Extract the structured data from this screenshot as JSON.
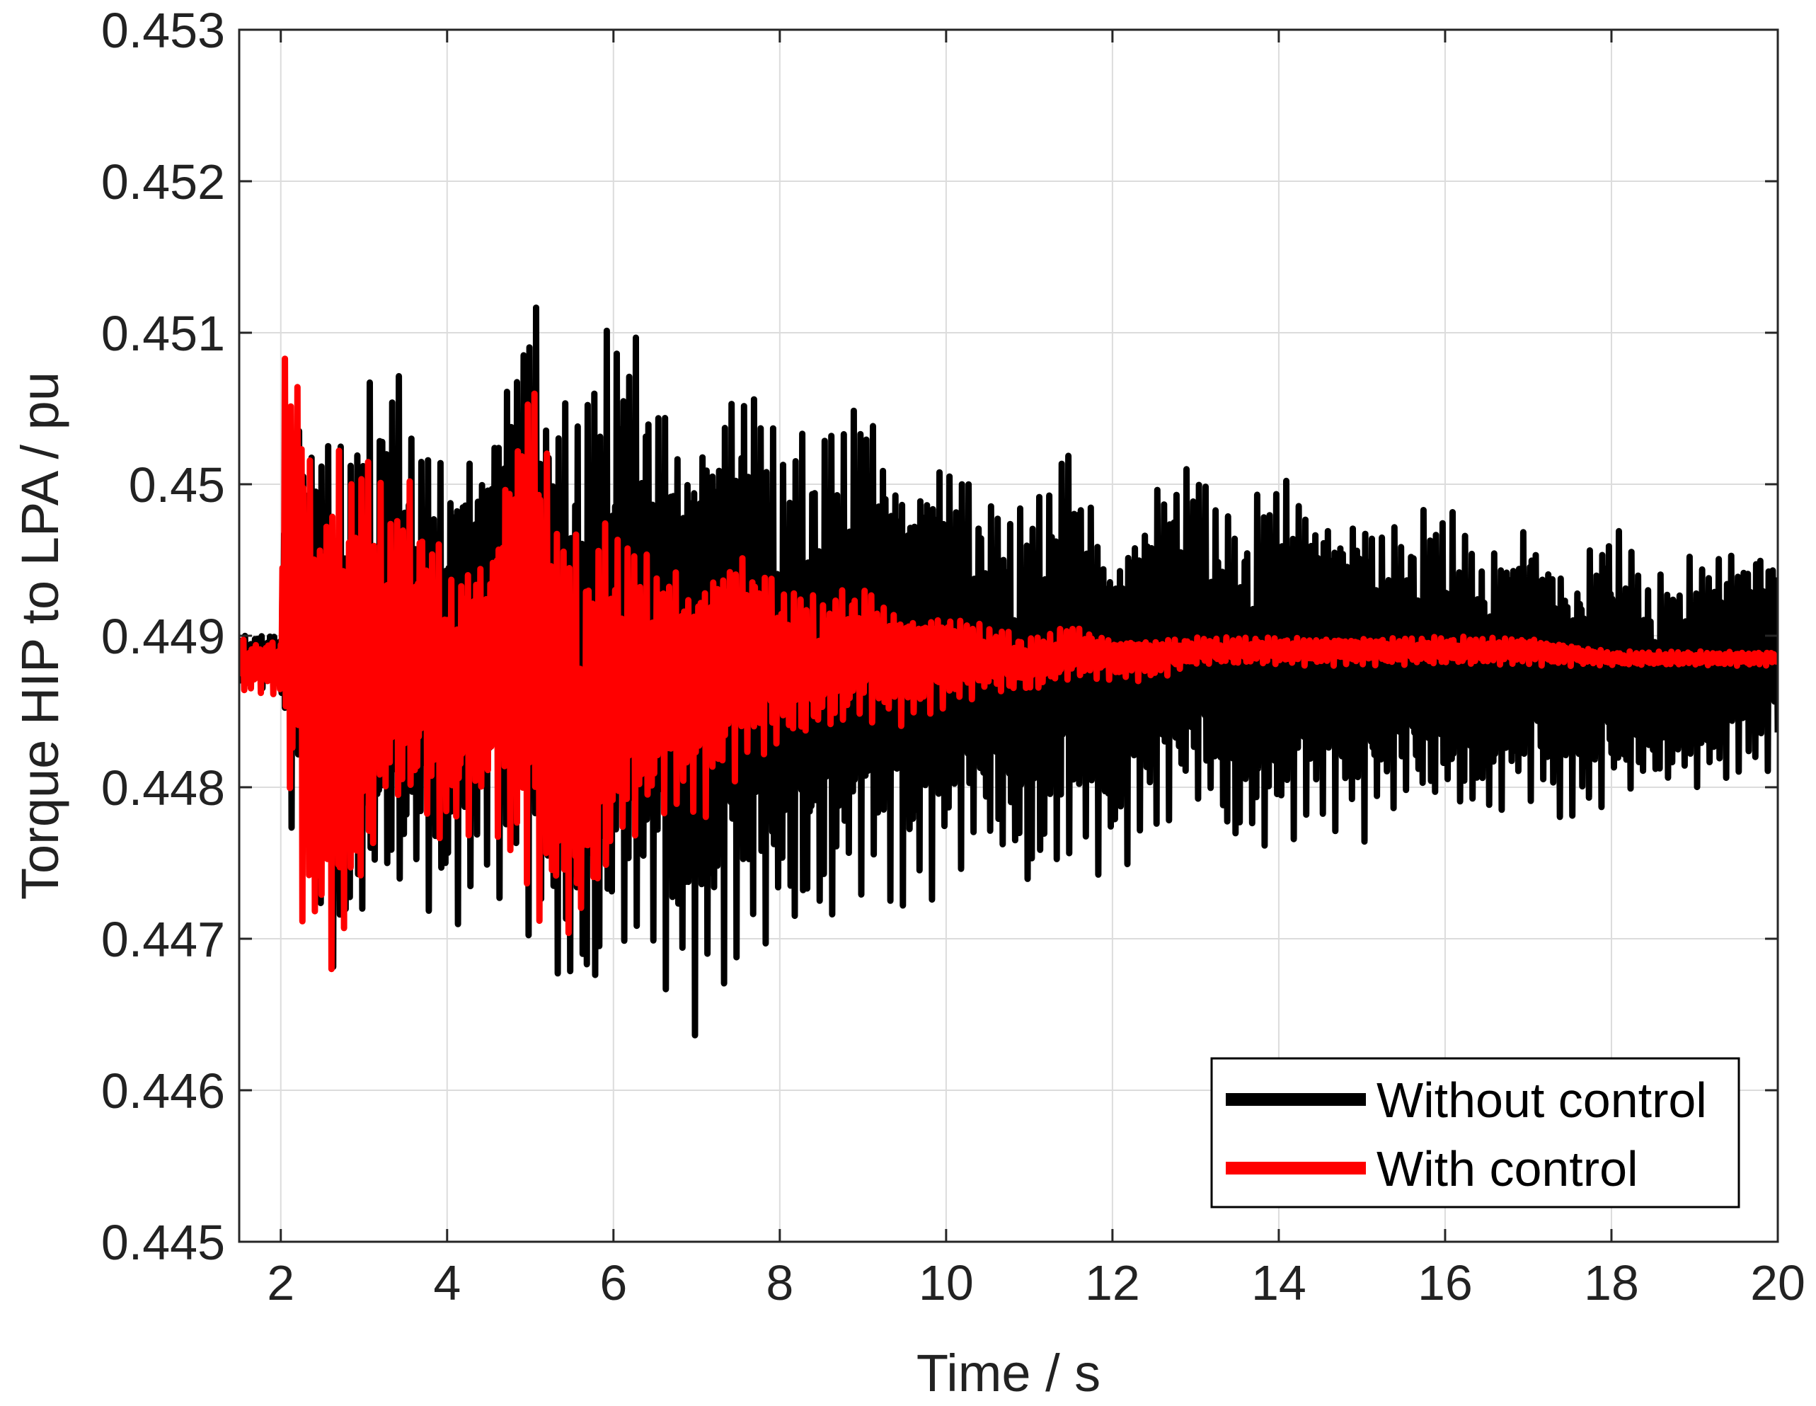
{
  "chart_data": {
    "type": "line",
    "title": "",
    "xlabel": "Time / s",
    "ylabel": "Torque HIP to LPA / pu",
    "xlim": [
      1.5,
      20
    ],
    "ylim": [
      0.445,
      0.453
    ],
    "x_ticks": [
      2,
      4,
      6,
      8,
      10,
      12,
      14,
      16,
      18,
      20
    ],
    "x_tick_labels": [
      "2",
      "4",
      "6",
      "8",
      "10",
      "12",
      "14",
      "16",
      "18",
      "20"
    ],
    "y_ticks": [
      0.445,
      0.446,
      0.447,
      0.448,
      0.449,
      0.45,
      0.451,
      0.452,
      0.453
    ],
    "y_tick_labels": [
      "0.445",
      "0.446",
      "0.447",
      "0.448",
      "0.449",
      "0.45",
      "0.451",
      "0.452",
      "0.453"
    ],
    "grid": true,
    "legend_position": "bottom-right",
    "series": [
      {
        "name": "Without control",
        "color": "#000000",
        "center": 0.44885,
        "envelope": {
          "x": [
            1.5,
            2.0,
            2.05,
            2.3,
            2.7,
            3.0,
            3.3,
            3.7,
            4.0,
            4.5,
            5.0,
            5.3,
            5.7,
            6.0,
            6.3,
            6.6,
            6.9,
            7.2,
            7.6,
            8.0,
            8.5,
            9.0,
            9.5,
            10.0,
            10.5,
            11.0,
            11.5,
            12.0,
            12.5,
            13.0,
            13.5,
            14.0,
            14.5,
            15.0,
            15.5,
            16.0,
            16.5,
            17.0,
            17.5,
            18.0,
            18.5,
            19.0,
            19.5,
            20.0
          ],
          "upper": [
            0.44905,
            0.44905,
            0.4505,
            0.4507,
            0.4505,
            0.4507,
            0.451,
            0.4505,
            0.4504,
            0.4506,
            0.4517,
            0.4507,
            0.4509,
            0.4514,
            0.4512,
            0.4509,
            0.4507,
            0.4509,
            0.4511,
            0.4505,
            0.4505,
            0.4509,
            0.4503,
            0.4505,
            0.45,
            0.45,
            0.4505,
            0.4497,
            0.4502,
            0.4503,
            0.4498,
            0.4503,
            0.45,
            0.45,
            0.4498,
            0.45,
            0.4496,
            0.4499,
            0.4495,
            0.4499,
            0.4494,
            0.4496,
            0.4497,
            0.4497
          ],
          "lower": [
            0.44865,
            0.44865,
            0.4478,
            0.4474,
            0.4464,
            0.4469,
            0.447,
            0.4471,
            0.4469,
            0.4473,
            0.4469,
            0.4465,
            0.4461,
            0.4466,
            0.4467,
            0.4466,
            0.4463,
            0.4465,
            0.4467,
            0.4468,
            0.4468,
            0.4472,
            0.4471,
            0.4473,
            0.4475,
            0.4471,
            0.4474,
            0.4474,
            0.4476,
            0.4478,
            0.4474,
            0.4475,
            0.4477,
            0.4476,
            0.4478,
            0.4477,
            0.4477,
            0.4479,
            0.4477,
            0.4478,
            0.4479,
            0.4479,
            0.448,
            0.4481
          ]
        }
      },
      {
        "name": "With control",
        "color": "#ff0000",
        "center": 0.44885,
        "envelope": {
          "x": [
            1.5,
            2.0,
            2.05,
            2.2,
            2.4,
            2.7,
            3.0,
            3.3,
            3.6,
            4.0,
            4.5,
            5.0,
            5.3,
            5.6,
            6.0,
            6.3,
            6.7,
            7.0,
            7.4,
            7.7,
            8.0,
            8.5,
            9.0,
            9.5,
            10.0,
            10.5,
            11.0,
            11.5,
            12.0,
            12.5,
            13.0,
            13.5,
            14.0,
            15.0,
            16.0,
            17.0,
            18.0,
            19.0,
            20.0
          ],
          "upper": [
            0.449,
            0.449,
            0.4514,
            0.4512,
            0.4502,
            0.4504,
            0.4504,
            0.45,
            0.4501,
            0.4496,
            0.4497,
            0.4512,
            0.4501,
            0.4497,
            0.4499,
            0.4497,
            0.4496,
            0.4495,
            0.4497,
            0.4496,
            0.4494,
            0.4493,
            0.4494,
            0.4492,
            0.4492,
            0.4491,
            0.449,
            0.4491,
            0.449,
            0.449,
            0.449,
            0.449,
            0.449,
            0.449,
            0.449,
            0.449,
            0.4489,
            0.4489,
            0.4489
          ],
          "lower": [
            0.4486,
            0.4486,
            0.4478,
            0.4472,
            0.4467,
            0.4466,
            0.4471,
            0.4477,
            0.4477,
            0.4475,
            0.4478,
            0.447,
            0.4469,
            0.4468,
            0.4473,
            0.4476,
            0.4478,
            0.4477,
            0.448,
            0.4481,
            0.4482,
            0.4483,
            0.4484,
            0.4484,
            0.4485,
            0.4486,
            0.4486,
            0.4487,
            0.4487,
            0.4487,
            0.4488,
            0.4488,
            0.4488,
            0.4488,
            0.4488,
            0.4488,
            0.4488,
            0.4488,
            0.4488
          ]
        }
      }
    ]
  }
}
